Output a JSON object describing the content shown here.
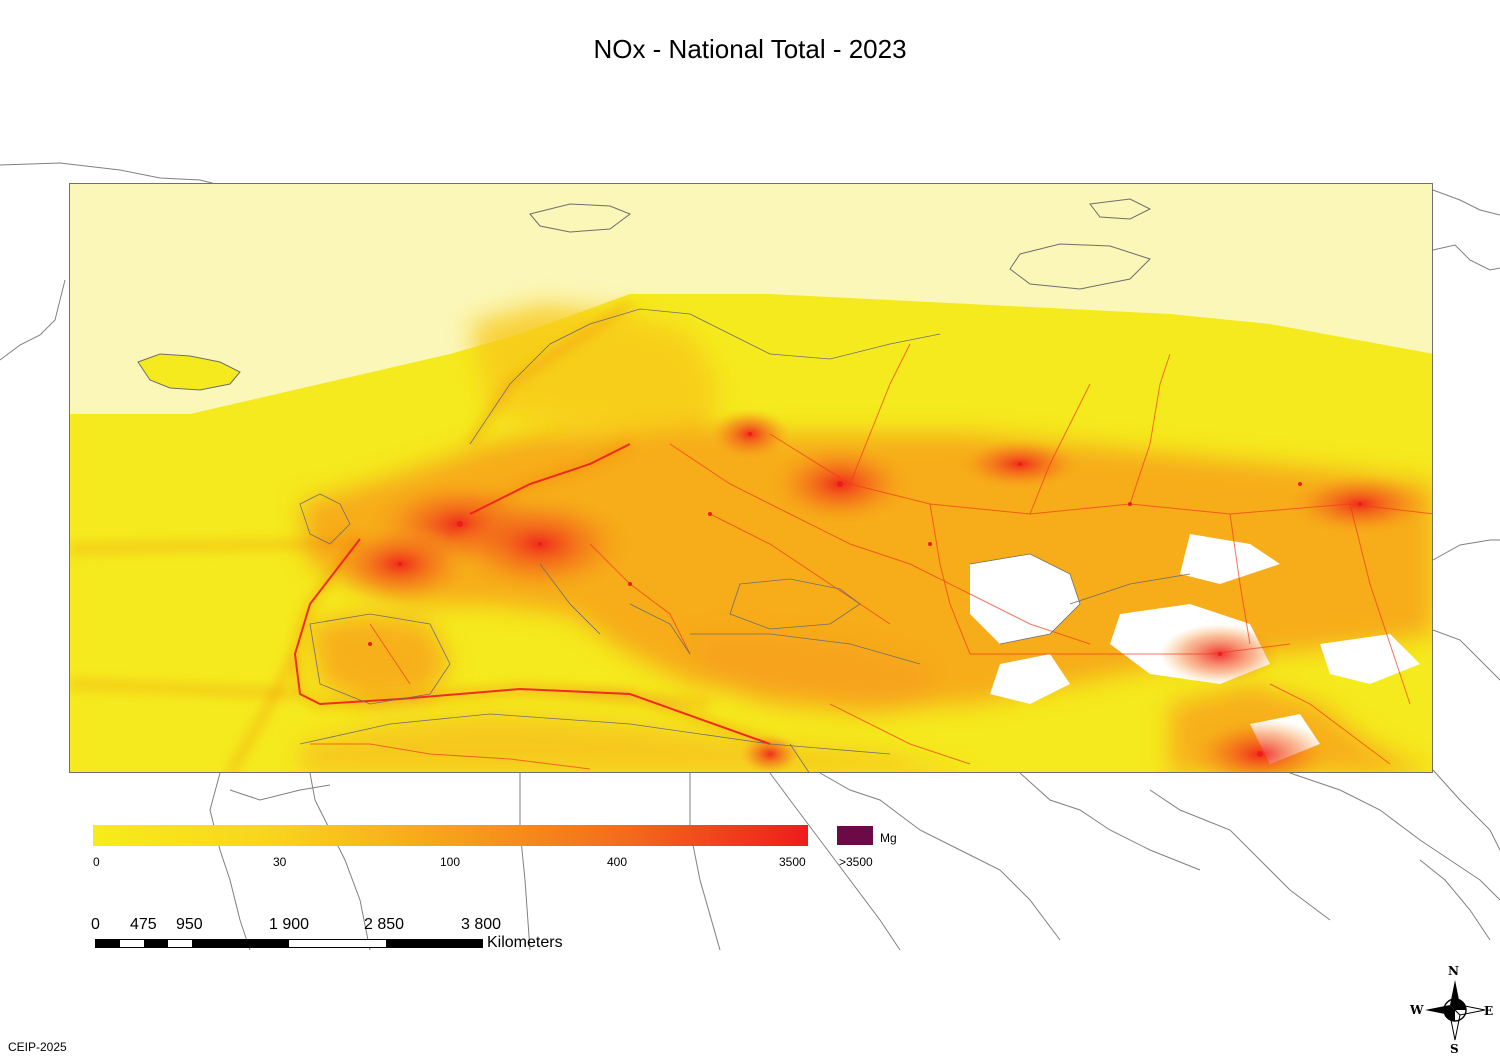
{
  "title": "NOx - National Total - 2023",
  "legend": {
    "unit": "Mg",
    "ticks": [
      "0",
      "30",
      "100",
      "400",
      "3500"
    ],
    "overflow_label": ">3500",
    "gradient_colors": [
      "#f7ec1a",
      "#f8d51c",
      "#f7a11a",
      "#f36a1c",
      "#ee1c1c"
    ],
    "overflow_color": "#6b0a47"
  },
  "scale_bar": {
    "labels": [
      "0",
      "475",
      "950",
      "1 900",
      "2 850",
      "3 800"
    ],
    "unit": "Kilometers"
  },
  "compass": {
    "north": "N",
    "south": "S",
    "east": "E",
    "west": "W"
  },
  "credit": "CEIP-2025",
  "colors": {
    "low": "#f7ec1a",
    "mid": "#f7a11a",
    "high": "#ee1c1c",
    "sea_light": "#fbf7b8",
    "no_data": "#ffffff",
    "border": "#6e6e6e"
  }
}
